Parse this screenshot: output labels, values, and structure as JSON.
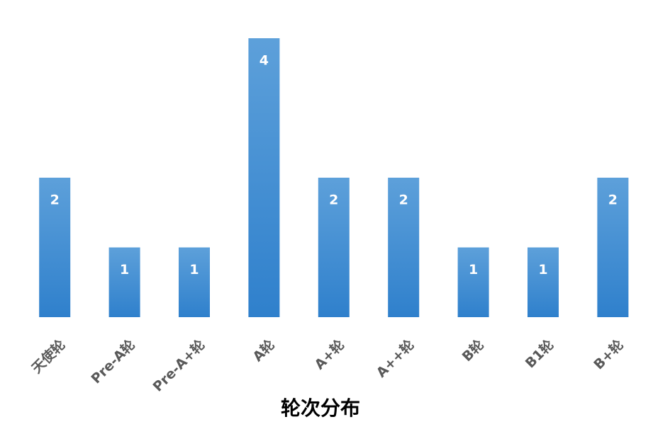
{
  "chart_data": {
    "type": "bar",
    "title": "轮次分布",
    "categories": [
      "天使轮",
      "Pre-A轮",
      "Pre-A+轮",
      "A轮",
      "A+轮",
      "A++轮",
      "B轮",
      "B1轮",
      "B+轮"
    ],
    "values": [
      2,
      1,
      1,
      4,
      2,
      2,
      1,
      1,
      2
    ],
    "color": "#4a8fd6",
    "ylim": [
      0,
      4
    ]
  }
}
